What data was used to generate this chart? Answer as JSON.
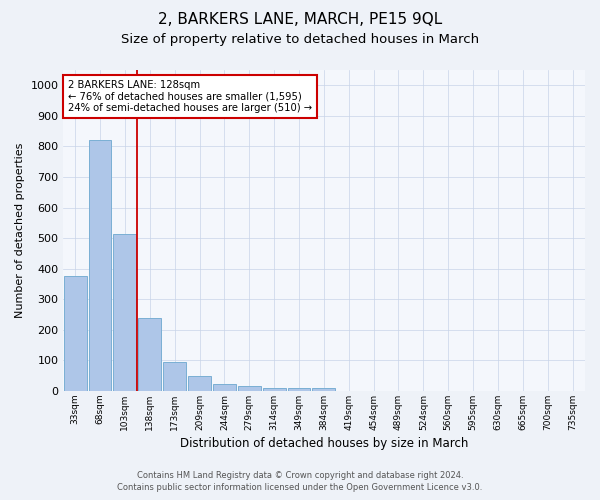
{
  "title": "2, BARKERS LANE, MARCH, PE15 9QL",
  "subtitle": "Size of property relative to detached houses in March",
  "xlabel": "Distribution of detached houses by size in March",
  "ylabel": "Number of detached properties",
  "categories": [
    "33sqm",
    "68sqm",
    "103sqm",
    "138sqm",
    "173sqm",
    "209sqm",
    "244sqm",
    "279sqm",
    "314sqm",
    "349sqm",
    "384sqm",
    "419sqm",
    "454sqm",
    "489sqm",
    "524sqm",
    "560sqm",
    "595sqm",
    "630sqm",
    "665sqm",
    "700sqm",
    "735sqm"
  ],
  "values": [
    375,
    820,
    515,
    240,
    93,
    50,
    22,
    15,
    10,
    8,
    8,
    0,
    0,
    0,
    0,
    0,
    0,
    0,
    0,
    0,
    0
  ],
  "bar_color": "#aec6e8",
  "bar_edge_color": "#7aafd4",
  "bar_linewidth": 0.7,
  "vline_x_index": 3,
  "vline_color": "#cc0000",
  "ylim": [
    0,
    1050
  ],
  "yticks": [
    0,
    100,
    200,
    300,
    400,
    500,
    600,
    700,
    800,
    900,
    1000
  ],
  "annotation_text": "2 BARKERS LANE: 128sqm\n← 76% of detached houses are smaller (1,595)\n24% of semi-detached houses are larger (510) →",
  "bg_color": "#eef2f8",
  "plot_bg_color": "#f4f7fc",
  "grid_color": "#c8d4e8",
  "title_fontsize": 11,
  "subtitle_fontsize": 9.5,
  "footer_line1": "Contains HM Land Registry data © Crown copyright and database right 2024.",
  "footer_line2": "Contains public sector information licensed under the Open Government Licence v3.0."
}
